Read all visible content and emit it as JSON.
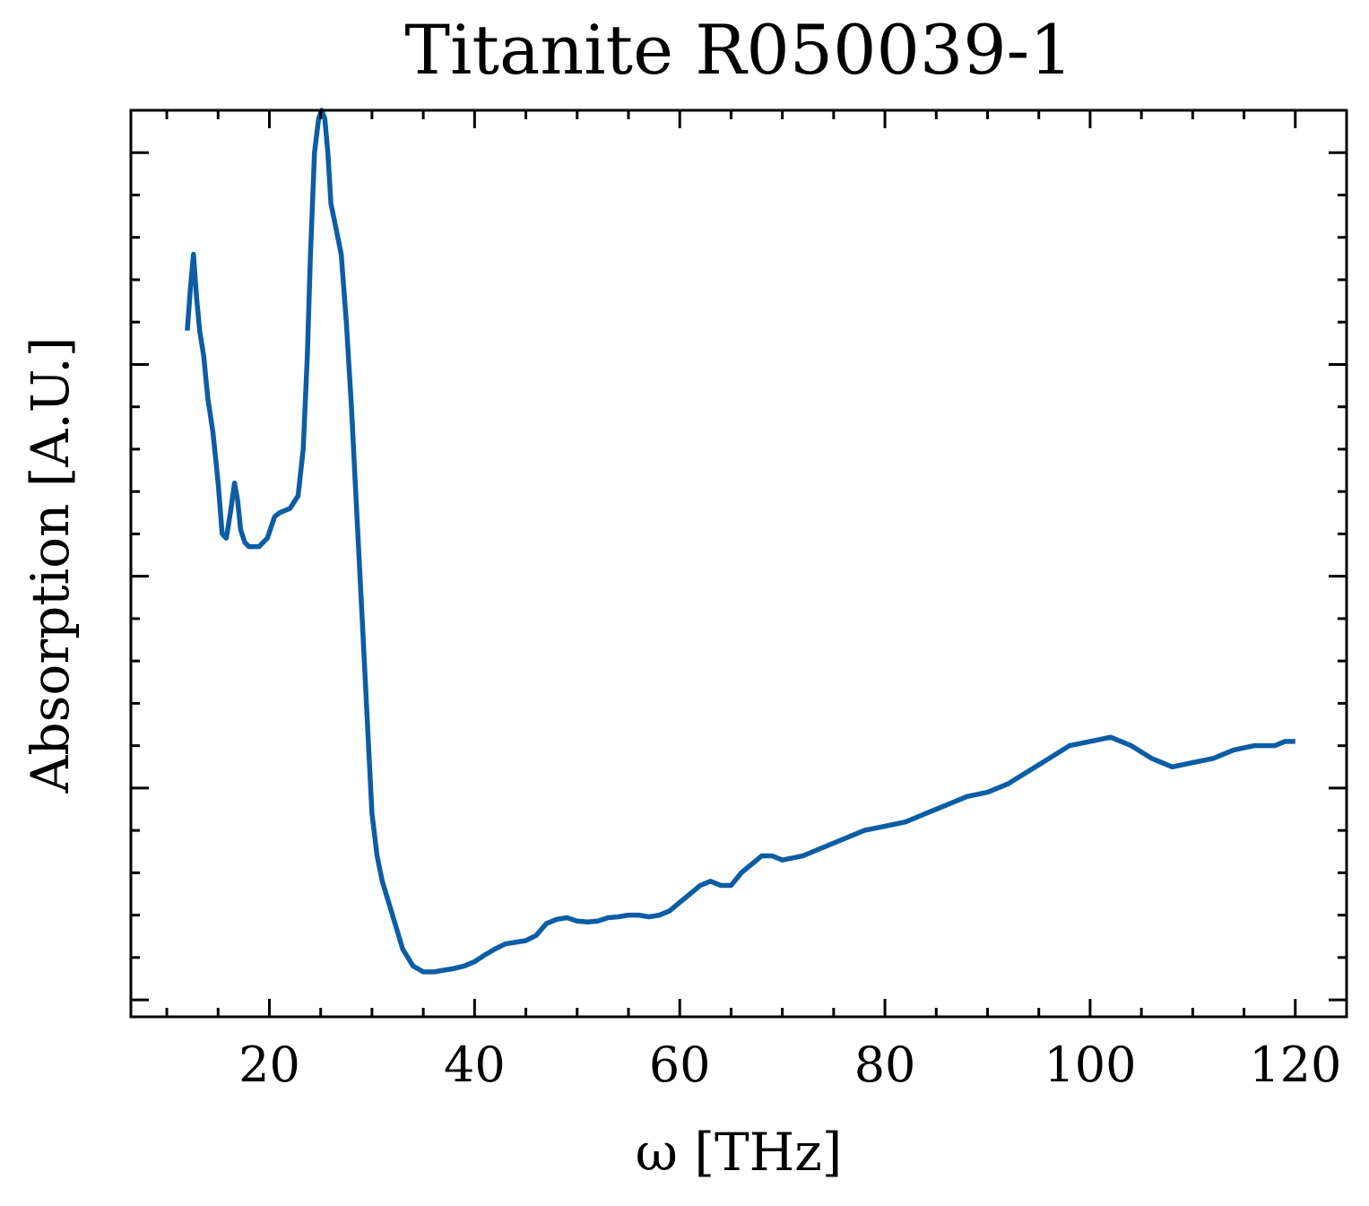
{
  "chart_data": {
    "type": "line",
    "title": "Titanite R050039-1",
    "xlabel": "ω [THz]",
    "ylabel": "Absorption [A.U.]",
    "xlim": [
      6.5,
      125
    ],
    "ylim": [
      -0.02,
      1.05
    ],
    "xticks": [
      20,
      40,
      60,
      80,
      100,
      120
    ],
    "yticks_major": [
      0,
      0.25,
      0.5,
      0.75,
      1.0
    ],
    "y_tick_labels_shown": false,
    "grid": false,
    "legend": "none",
    "color": "#0C5DA5",
    "series": [
      {
        "name": "Titanite R050039-1",
        "x": [
          12.0,
          12.3,
          12.6,
          12.9,
          13.2,
          13.6,
          14.0,
          14.5,
          15.0,
          15.4,
          15.8,
          16.2,
          16.6,
          16.9,
          17.2,
          17.6,
          18.0,
          18.5,
          19.0,
          19.8,
          20.5,
          21.0,
          22.0,
          22.8,
          23.3,
          23.7,
          24.0,
          24.4,
          24.8,
          25.1,
          25.4,
          25.7,
          26.0,
          26.5,
          27.0,
          27.5,
          28.0,
          28.5,
          29.0,
          29.5,
          30.0,
          30.5,
          31.0,
          32.0,
          33.0,
          34.0,
          35.0,
          36.0,
          37.0,
          38.0,
          39.0,
          40.0,
          41.0,
          42.0,
          43.0,
          44.0,
          45.0,
          46.0,
          47.0,
          48.0,
          49.0,
          50.0,
          51.0,
          52.0,
          53.0,
          54.0,
          55.0,
          56.0,
          57.0,
          58.0,
          59.0,
          60.0,
          61.0,
          62.0,
          63.0,
          64.0,
          65.0,
          66.0,
          67.0,
          68.0,
          69.0,
          70.0,
          72.0,
          74.0,
          76.0,
          78.0,
          80.0,
          82.0,
          84.0,
          86.0,
          88.0,
          90.0,
          92.0,
          94.0,
          96.0,
          98.0,
          100.0,
          102.0,
          104.0,
          106.0,
          108.0,
          110.0,
          112.0,
          114.0,
          116.0,
          118.0,
          119.0,
          120.0
        ],
        "y": [
          0.79,
          0.84,
          0.88,
          0.83,
          0.79,
          0.76,
          0.71,
          0.67,
          0.61,
          0.55,
          0.545,
          0.575,
          0.61,
          0.59,
          0.555,
          0.54,
          0.535,
          0.535,
          0.535,
          0.545,
          0.57,
          0.575,
          0.58,
          0.595,
          0.65,
          0.76,
          0.88,
          1.0,
          1.04,
          1.05,
          1.04,
          1.0,
          0.94,
          0.91,
          0.88,
          0.8,
          0.7,
          0.58,
          0.46,
          0.34,
          0.22,
          0.17,
          0.14,
          0.1,
          0.06,
          0.04,
          0.033,
          0.033,
          0.035,
          0.037,
          0.04,
          0.045,
          0.053,
          0.06,
          0.066,
          0.068,
          0.07,
          0.076,
          0.09,
          0.095,
          0.097,
          0.093,
          0.092,
          0.093,
          0.097,
          0.098,
          0.1,
          0.1,
          0.098,
          0.1,
          0.105,
          0.115,
          0.125,
          0.135,
          0.14,
          0.135,
          0.135,
          0.15,
          0.16,
          0.17,
          0.17,
          0.165,
          0.17,
          0.18,
          0.19,
          0.2,
          0.205,
          0.21,
          0.22,
          0.23,
          0.24,
          0.245,
          0.255,
          0.27,
          0.285,
          0.3,
          0.305,
          0.31,
          0.3,
          0.285,
          0.275,
          0.28,
          0.285,
          0.295,
          0.3,
          0.3,
          0.305,
          0.305
        ]
      }
    ]
  }
}
